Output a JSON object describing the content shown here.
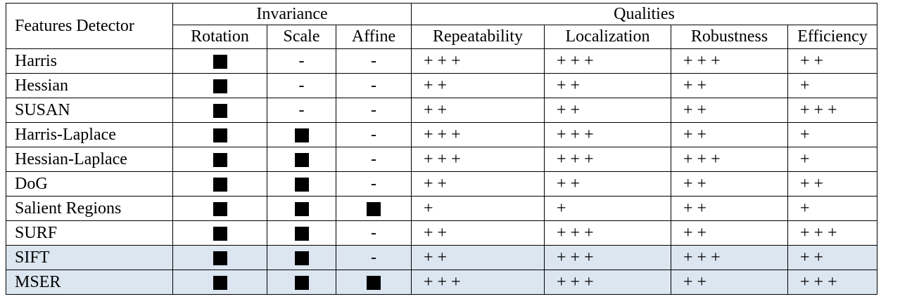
{
  "header": {
    "feature_col": "Features Detector",
    "invariance_group": "Invariance",
    "qualities_group": "Qualities",
    "invariance_cols": [
      "Rotation",
      "Scale",
      "Affine"
    ],
    "quality_cols": [
      "Repeatability",
      "Localization",
      "Robustness",
      "Efficiency"
    ]
  },
  "rows": [
    {
      "name": "Harris",
      "rotation": "■",
      "scale": "-",
      "affine": "-",
      "repeatability": "+ + +",
      "localization": "+ + +",
      "robustness": "+ + +",
      "efficiency": "+ +",
      "highlight": false
    },
    {
      "name": "Hessian",
      "rotation": "■",
      "scale": "-",
      "affine": "-",
      "repeatability": "+ +",
      "localization": "+ +",
      "robustness": "+ +",
      "efficiency": "+",
      "highlight": false
    },
    {
      "name": "SUSAN",
      "rotation": "■",
      "scale": "-",
      "affine": "-",
      "repeatability": "+ +",
      "localization": "+ +",
      "robustness": "+ +",
      "efficiency": "+ + +",
      "highlight": false
    },
    {
      "name": "Harris-Laplace",
      "rotation": "■",
      "scale": "■",
      "affine": "-",
      "repeatability": "+ + +",
      "localization": "+ + +",
      "robustness": "+ +",
      "efficiency": "+",
      "highlight": false
    },
    {
      "name": "Hessian-Laplace",
      "rotation": "■",
      "scale": "■",
      "affine": "-",
      "repeatability": "+ + +",
      "localization": "+ + +",
      "robustness": "+ + +",
      "efficiency": "+",
      "highlight": false
    },
    {
      "name": "DoG",
      "rotation": "■",
      "scale": "■",
      "affine": "-",
      "repeatability": "+ +",
      "localization": "+ +",
      "robustness": "+ +",
      "efficiency": "+ +",
      "highlight": false
    },
    {
      "name": "Salient Regions",
      "rotation": "■",
      "scale": "■",
      "affine": "■",
      "repeatability": "+",
      "localization": "+",
      "robustness": "+ +",
      "efficiency": "+",
      "highlight": false
    },
    {
      "name": "SURF",
      "rotation": "■",
      "scale": "■",
      "affine": "-",
      "repeatability": "+ +",
      "localization": "+ + +",
      "robustness": "+ +",
      "efficiency": "+ + +",
      "highlight": false
    },
    {
      "name": "SIFT",
      "rotation": "■",
      "scale": "■",
      "affine": "-",
      "repeatability": "+ +",
      "localization": "+ + +",
      "robustness": "+ + +",
      "efficiency": "+ +",
      "highlight": true
    },
    {
      "name": "MSER",
      "rotation": "■",
      "scale": "■",
      "affine": "■",
      "repeatability": "+ + +",
      "localization": "+ + +",
      "robustness": "+ +",
      "efficiency": "+ + +",
      "highlight": true
    }
  ],
  "colors": {
    "highlight_row": "#dce6f0",
    "border": "#000000"
  }
}
